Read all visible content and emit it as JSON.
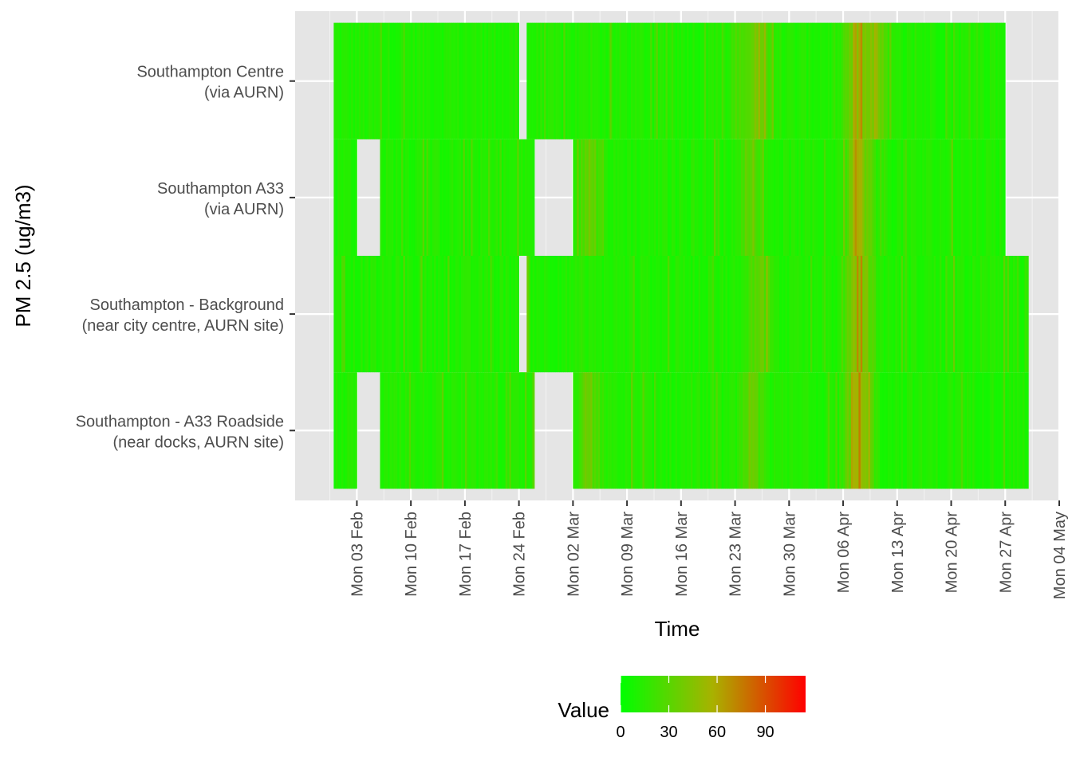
{
  "chart_data": {
    "type": "heatmap",
    "xlabel": "Time",
    "ylabel": "PM 2.5 (ug/m3)",
    "x_range": [
      "2020-01-26",
      "2020-05-04"
    ],
    "x_ticks": [
      {
        "date": "2020-02-03",
        "label": "Mon 03 Feb"
      },
      {
        "date": "2020-02-10",
        "label": "Mon 10 Feb"
      },
      {
        "date": "2020-02-17",
        "label": "Mon 17 Feb"
      },
      {
        "date": "2020-02-24",
        "label": "Mon 24 Feb"
      },
      {
        "date": "2020-03-02",
        "label": "Mon 02 Mar"
      },
      {
        "date": "2020-03-09",
        "label": "Mon 09 Mar"
      },
      {
        "date": "2020-03-16",
        "label": "Mon 16 Mar"
      },
      {
        "date": "2020-03-23",
        "label": "Mon 23 Mar"
      },
      {
        "date": "2020-03-30",
        "label": "Mon 30 Mar"
      },
      {
        "date": "2020-04-06",
        "label": "Mon 06 Apr"
      },
      {
        "date": "2020-04-13",
        "label": "Mon 13 Apr"
      },
      {
        "date": "2020-04-20",
        "label": "Mon 20 Apr"
      },
      {
        "date": "2020-04-27",
        "label": "Mon 27 Apr"
      },
      {
        "date": "2020-05-04",
        "label": "Mon 04 May"
      }
    ],
    "series": [
      {
        "label_lines": [
          "Southampton Centre",
          "(via AURN)"
        ],
        "coverage": [
          [
            "2020-01-31",
            "2020-02-24"
          ],
          [
            "2020-02-25",
            "2020-04-27"
          ]
        ],
        "episodes": [
          {
            "date": "2020-03-24",
            "value": 45
          },
          {
            "date": "2020-03-26",
            "value": 55
          },
          {
            "date": "2020-04-08",
            "value": 80
          },
          {
            "date": "2020-04-10",
            "value": 60
          }
        ]
      },
      {
        "label_lines": [
          "Southampton A33",
          "(via AURN)"
        ],
        "coverage": [
          [
            "2020-01-31",
            "2020-02-03"
          ],
          [
            "2020-02-06",
            "2020-02-26"
          ],
          [
            "2020-03-02",
            "2020-04-27"
          ]
        ],
        "episodes": [
          {
            "date": "2020-03-04",
            "value": 50
          },
          {
            "date": "2020-03-25",
            "value": 50
          },
          {
            "date": "2020-04-08",
            "value": 70
          }
        ]
      },
      {
        "label_lines": [
          "Southampton - Background",
          "(near city centre, AURN site)"
        ],
        "coverage": [
          [
            "2020-01-31",
            "2020-02-24"
          ],
          [
            "2020-02-25",
            "2020-04-30"
          ]
        ],
        "episodes": [
          {
            "date": "2020-03-26",
            "value": 50
          },
          {
            "date": "2020-04-08",
            "value": 80
          }
        ]
      },
      {
        "label_lines": [
          "Southampton - A33 Roadside",
          "(near docks, AURN site)"
        ],
        "coverage": [
          [
            "2020-01-31",
            "2020-02-03"
          ],
          [
            "2020-02-06",
            "2020-02-26"
          ],
          [
            "2020-03-02",
            "2020-04-30"
          ]
        ],
        "episodes": [
          {
            "date": "2020-03-04",
            "value": 50
          },
          {
            "date": "2020-03-25",
            "value": 50
          },
          {
            "date": "2020-04-08",
            "value": 80
          }
        ]
      }
    ],
    "legend": {
      "title": "Value",
      "placement": "bottom",
      "range": [
        0,
        115
      ],
      "breaks": [
        0,
        30,
        60,
        90
      ],
      "colors": [
        "#00ff00",
        "#ff0000"
      ]
    },
    "panel_background": "#e5e5e5",
    "gridlines": true
  }
}
